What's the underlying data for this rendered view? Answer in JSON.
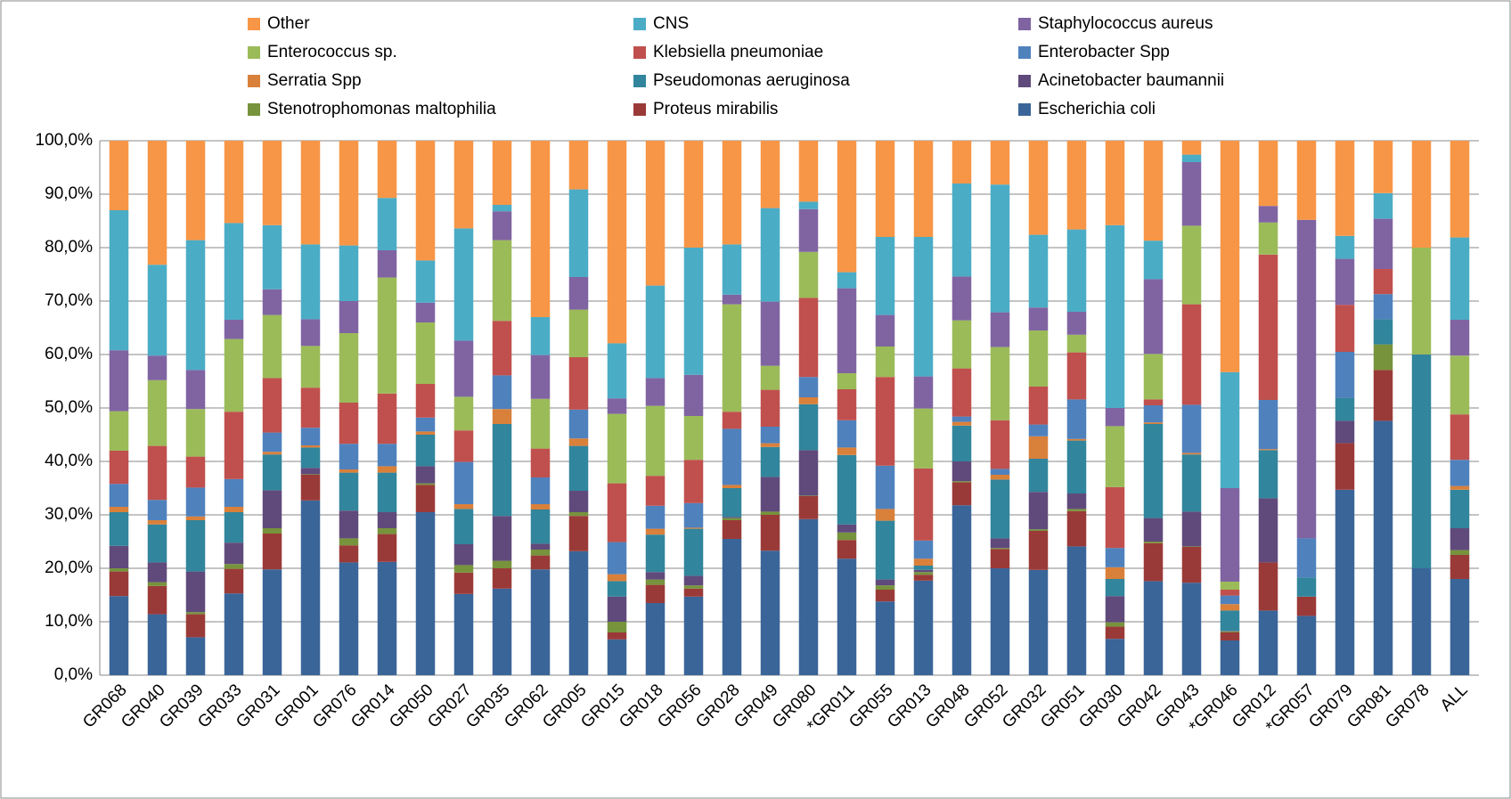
{
  "chart_data": {
    "type": "stacked_bar",
    "categories": [
      "GR068",
      "GR040",
      "GR039",
      "GR033",
      "GR031",
      "GR001",
      "GR076",
      "GR014",
      "GR050",
      "GR027",
      "GR035",
      "GR062",
      "GR005",
      "GR015",
      "GR018",
      "GR056",
      "GR028",
      "GR049",
      "GR080",
      "*GR011",
      "GR055",
      "GR013",
      "GR048",
      "GR052",
      "GR032",
      "GR051",
      "GR030",
      "GR042",
      "GR043",
      "*GR046",
      "GR012",
      "*GR057",
      "GR079",
      "GR081",
      "GR078",
      "ALL"
    ],
    "series": [
      {
        "name": "Escherichia coli",
        "color": "#3a6598",
        "values": [
          14.8,
          11.4,
          7.1,
          15.3,
          19.8,
          32.7,
          21.1,
          21.2,
          30.5,
          15.2,
          16.2,
          19.8,
          23.2,
          6.7,
          13.5,
          14.7,
          25.5,
          23.3,
          29.2,
          21.8,
          13.8,
          17.7,
          31.8,
          20.0,
          19.7,
          24.1,
          6.8,
          17.6,
          17.3,
          6.5,
          12.1,
          11.1,
          34.7,
          47.6,
          20,
          18.0
        ]
      },
      {
        "name": "Proteus mirabilis",
        "color": "#9a3a38",
        "values": [
          4.6,
          5.3,
          4.3,
          4.6,
          6.7,
          4.8,
          3.2,
          5.2,
          5.1,
          4.0,
          3.8,
          2.6,
          6.6,
          1.3,
          3.4,
          1.5,
          3.5,
          6.7,
          4.3,
          3.5,
          2.2,
          1.1,
          4.3,
          3.6,
          7.3,
          6.6,
          2.3,
          7.1,
          6.7,
          1.5,
          9.0,
          3.6,
          8.7,
          9.5,
          0,
          4.5
        ]
      },
      {
        "name": "Stenotrophomonas maltophilia",
        "color": "#77933c",
        "values": [
          0.6,
          0.7,
          0.4,
          0.9,
          1.0,
          0.1,
          1.3,
          1.1,
          0.3,
          1.4,
          1.4,
          1.1,
          0.7,
          2.0,
          1.0,
          0.6,
          0.4,
          0.6,
          0.1,
          1.4,
          0.8,
          0.5,
          0.2,
          0.2,
          0.3,
          0.4,
          0.8,
          0.3,
          0.1,
          0.2,
          0,
          0,
          0,
          4.8,
          0,
          0.9
        ]
      },
      {
        "name": "Acinetobacter baumannii",
        "color": "#604a7b",
        "values": [
          4.2,
          3.7,
          7.6,
          4.0,
          7.1,
          1.2,
          5.2,
          3.0,
          3.2,
          3.9,
          8.4,
          1.1,
          4.0,
          4.7,
          1.4,
          1.8,
          0.2,
          6.5,
          8.5,
          1.5,
          1.1,
          0.4,
          3.7,
          1.8,
          7.0,
          2.9,
          4.9,
          4.4,
          6.5,
          0.1,
          12.0,
          0,
          4.2,
          0,
          0,
          4.1
        ]
      },
      {
        "name": "Pseudomonas aeruginosa",
        "color": "#31859c",
        "values": [
          6.3,
          7.1,
          9.6,
          5.7,
          6.7,
          3.8,
          7.1,
          7.4,
          5.9,
          6.6,
          17.2,
          6.4,
          8.4,
          2.9,
          7.0,
          8.8,
          5.4,
          5.6,
          8.6,
          13.0,
          11.0,
          0.8,
          6.7,
          11.0,
          6.2,
          9.9,
          3.2,
          17.6,
          10.7,
          3.8,
          9.0,
          3.6,
          4.3,
          4.7,
          40,
          7.2
        ]
      },
      {
        "name": "Serratia Spp",
        "color": "#d9803a",
        "values": [
          1.0,
          0.8,
          0.7,
          1.0,
          0.5,
          0.4,
          0.6,
          1.2,
          0.6,
          0.9,
          2.8,
          1.0,
          1.4,
          1.3,
          1.1,
          0.2,
          0.6,
          0.7,
          1.3,
          1.4,
          2.2,
          1.3,
          0.7,
          0.9,
          4.2,
          0.3,
          2.2,
          0.3,
          0.3,
          1.2,
          0.2,
          0,
          0,
          0,
          0,
          0.7
        ]
      },
      {
        "name": "Enterobacter Spp",
        "color": "#4f81bd",
        "values": [
          4.3,
          3.8,
          5.4,
          5.2,
          3.6,
          3.3,
          4.8,
          4.2,
          2.6,
          7.9,
          6.3,
          5.0,
          5.4,
          6.0,
          4.3,
          4.6,
          10.5,
          3.1,
          3.8,
          5.1,
          8.1,
          3.4,
          1.0,
          1.1,
          2.2,
          7.4,
          3.6,
          3.2,
          9.0,
          1.6,
          9.2,
          7.3,
          8.6,
          4.7,
          0,
          4.9
        ]
      },
      {
        "name": "Klebsiella pneumoniae",
        "color": "#c0504d",
        "values": [
          6.2,
          10.1,
          5.8,
          12.6,
          10.2,
          7.5,
          7.7,
          9.4,
          6.3,
          5.9,
          10.2,
          5.4,
          9.8,
          11.0,
          5.6,
          8.1,
          3.2,
          6.9,
          14.8,
          5.8,
          16.6,
          13.5,
          9.0,
          9.1,
          7.1,
          8.8,
          11.4,
          1.1,
          18.8,
          1.1,
          27.2,
          0,
          8.8,
          4.7,
          0,
          8.5
        ]
      },
      {
        "name": "Enterococcus sp.",
        "color": "#9bbb59",
        "values": [
          7.4,
          12.3,
          8.9,
          13.6,
          11.8,
          7.8,
          13.0,
          21.7,
          11.5,
          6.3,
          15.1,
          9.3,
          8.9,
          13.0,
          13.1,
          8.2,
          20.1,
          4.5,
          8.6,
          3.0,
          5.7,
          11.2,
          9.0,
          13.7,
          10.5,
          3.3,
          11.4,
          8.5,
          14.7,
          1.5,
          6.0,
          0,
          0,
          0,
          20,
          11.0
        ]
      },
      {
        "name": "Staphylococcus aureus",
        "color": "#8064a2",
        "values": [
          11.4,
          4.6,
          7.3,
          3.6,
          4.8,
          5.0,
          6.0,
          5.1,
          3.7,
          10.5,
          5.4,
          8.2,
          6.1,
          2.9,
          5.2,
          7.7,
          1.8,
          12.0,
          8.0,
          15.9,
          5.9,
          6.0,
          8.2,
          6.5,
          4.3,
          4.3,
          3.4,
          14.0,
          11.9,
          17.5,
          3.1,
          59.6,
          8.6,
          9.4,
          0,
          6.7
        ]
      },
      {
        "name": "CNS",
        "color": "#4bacc6",
        "values": [
          26.2,
          17.0,
          24.3,
          18.1,
          12.0,
          14.0,
          10.4,
          9.8,
          7.9,
          21.0,
          1.2,
          7.1,
          16.4,
          10.3,
          17.3,
          23.8,
          9.4,
          17.5,
          1.4,
          3.0,
          14.6,
          26.1,
          17.4,
          23.9,
          13.6,
          15.4,
          34.2,
          7.2,
          1.4,
          21.7,
          0,
          0,
          4.3,
          4.8,
          0,
          15.4
        ]
      },
      {
        "name": "Other",
        "color": "#f79646",
        "values": [
          13.0,
          23.2,
          18.6,
          15.4,
          15.8,
          19.4,
          19.6,
          10.7,
          22.4,
          16.4,
          12.0,
          33.0,
          9.1,
          37.9,
          27.1,
          20.0,
          19.4,
          12.6,
          11.4,
          24.6,
          18.0,
          18.0,
          8.0,
          8.2,
          17.6,
          16.6,
          15.8,
          18.7,
          2.6,
          43.3,
          12.2,
          14.8,
          17.8,
          9.8,
          20,
          18.1
        ]
      }
    ],
    "ylim": [
      0,
      100
    ],
    "yticks": [
      {
        "value": 0,
        "label": "0,0%"
      },
      {
        "value": 10,
        "label": "10,0%"
      },
      {
        "value": 20,
        "label": "20,0%"
      },
      {
        "value": 30,
        "label": "30,0%"
      },
      {
        "value": 40,
        "label": "40,0%"
      },
      {
        "value": 50,
        "label": "50,0%"
      },
      {
        "value": 60,
        "label": "60,0%"
      },
      {
        "value": 70,
        "label": "70,0%"
      },
      {
        "value": 80,
        "label": "80,0%"
      },
      {
        "value": 90,
        "label": "90,0%"
      },
      {
        "value": 100,
        "label": "100,0%"
      }
    ],
    "grid": true,
    "legend": "top"
  }
}
